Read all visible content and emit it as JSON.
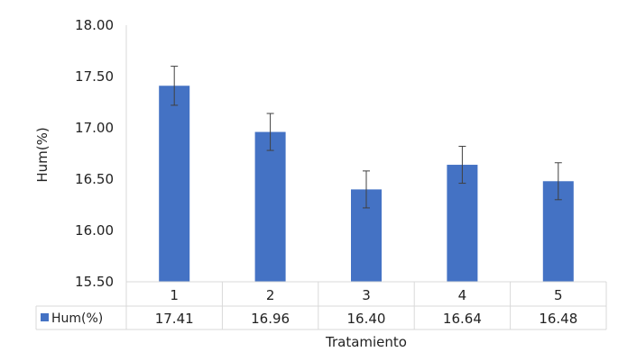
{
  "chart_data": {
    "type": "bar",
    "categories": [
      "1",
      "2",
      "3",
      "4",
      "5"
    ],
    "series": [
      {
        "name": "Hum(%)",
        "values": [
          17.41,
          16.96,
          16.4,
          16.64,
          16.48
        ],
        "error": [
          0.19,
          0.18,
          0.18,
          0.18,
          0.18
        ],
        "color": "#4472c4"
      }
    ],
    "data_labels": [
      "17.41",
      "16.96",
      "16.40",
      "16.64",
      "16.48"
    ],
    "title": "",
    "xlabel": "Tratamiento",
    "ylabel": "Hum(%)",
    "ylim": [
      15.5,
      18.0
    ],
    "yticks": [
      "15.50",
      "16.00",
      "16.50",
      "17.00",
      "17.50",
      "18.00"
    ],
    "data_table": true,
    "grid": false
  }
}
